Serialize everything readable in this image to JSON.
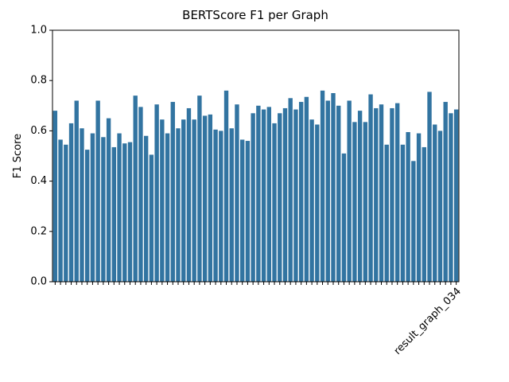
{
  "chart_data": {
    "type": "bar",
    "title": "BERTScore F1 per Graph",
    "ylabel": "F1 Score",
    "categories": [
      null,
      null,
      null,
      null,
      null,
      null,
      null,
      null,
      null,
      null,
      null,
      null,
      null,
      null,
      null,
      null,
      null,
      null,
      null,
      null,
      null,
      null,
      null,
      null,
      null,
      null,
      null,
      null,
      null,
      null,
      null,
      null,
      null,
      null,
      null,
      null,
      null,
      null,
      null,
      null,
      null,
      null,
      null,
      null,
      null,
      null,
      null,
      null,
      null,
      null,
      null,
      null,
      null,
      null,
      null,
      null,
      null,
      null,
      null,
      null,
      null,
      null,
      null,
      null,
      null,
      null,
      null,
      null,
      null,
      null,
      null,
      null,
      null,
      null,
      null,
      "result_graph_034"
    ],
    "values": [
      0.68,
      0.565,
      0.545,
      0.63,
      0.72,
      0.61,
      0.525,
      0.59,
      0.72,
      0.575,
      0.65,
      0.535,
      0.59,
      0.55,
      0.555,
      0.74,
      0.695,
      0.58,
      0.505,
      0.705,
      0.645,
      0.59,
      0.715,
      0.61,
      0.645,
      0.69,
      0.645,
      0.74,
      0.66,
      0.665,
      0.605,
      0.6,
      0.76,
      0.61,
      0.705,
      0.565,
      0.56,
      0.67,
      0.7,
      0.685,
      0.695,
      0.63,
      0.67,
      0.69,
      0.73,
      0.685,
      0.715,
      0.735,
      0.645,
      0.625,
      0.76,
      0.72,
      0.75,
      0.7,
      0.51,
      0.72,
      0.635,
      0.68,
      0.635,
      0.745,
      0.69,
      0.705,
      0.545,
      0.69,
      0.71,
      0.545,
      0.595,
      0.48,
      0.59,
      0.535,
      0.755,
      0.625,
      0.6,
      0.715,
      0.67,
      0.685
    ],
    "color": "#3274a1",
    "ylim": [
      0,
      1.0
    ],
    "yticks": [
      {
        "value": 0,
        "label": "0.0"
      },
      {
        "value": 0.2,
        "label": "0.2"
      },
      {
        "value": 0.4,
        "label": "0.4"
      },
      {
        "value": 0.6,
        "label": "0.6"
      },
      {
        "value": 0.8,
        "label": "0.8"
      },
      {
        "value": 1.0,
        "label": "1.0"
      }
    ]
  }
}
